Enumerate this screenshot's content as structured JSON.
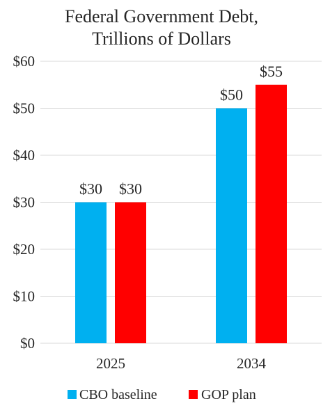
{
  "chart_data": {
    "type": "bar",
    "title_lines": [
      "Federal Government Debt,",
      "Trillions of Dollars"
    ],
    "categories": [
      "2025",
      "2034"
    ],
    "series": [
      {
        "name": "CBO baseline",
        "values": [
          30,
          50
        ],
        "color": "#00B0F0"
      },
      {
        "name": "GOP plan",
        "values": [
          30,
          55
        ],
        "color": "#FF0000"
      }
    ],
    "data_labels": [
      [
        "$30",
        "$50"
      ],
      [
        "$30",
        "$55"
      ]
    ],
    "ylim": [
      0,
      60
    ],
    "y_ticks": [
      0,
      10,
      20,
      30,
      40,
      50,
      60
    ],
    "y_tick_labels": [
      "$0",
      "$10",
      "$20",
      "$30",
      "$40",
      "$50",
      "$60"
    ],
    "grid": true,
    "gridline_color": "#D9D9D9",
    "legend_position": "bottom"
  }
}
